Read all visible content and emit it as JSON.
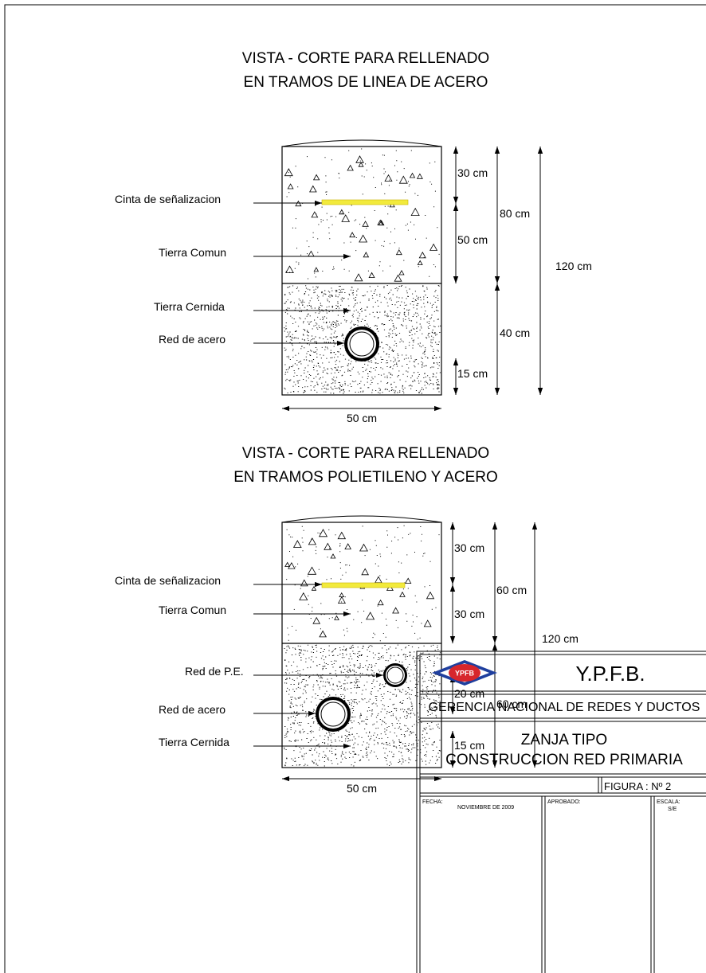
{
  "view1": {
    "title_line1": "VISTA - CORTE PARA RELLENADO",
    "title_line2": "EN TRAMOS DE LINEA DE ACERO",
    "labels": {
      "cinta": "Cinta de señalizacion",
      "tierra_comun": "Tierra Comun",
      "tierra_cernida": "Tierra Cernida",
      "red_acero": "Red de acero"
    },
    "dims": {
      "d30": "30 cm",
      "d50": "50 cm",
      "d80": "80 cm",
      "d120": "120 cm",
      "d40": "40 cm",
      "d15": "15 cm",
      "width": "50 cm"
    }
  },
  "view2": {
    "title_line1": "VISTA - CORTE PARA RELLENADO",
    "title_line2": "EN TRAMOS POLIETILENO Y ACERO",
    "labels": {
      "cinta": "Cinta de señalizacion",
      "tierra_comun": "Tierra Comun",
      "red_pe": "Red de P.E.",
      "red_acero": "Red de acero",
      "tierra_cernida": "Tierra Cernida"
    },
    "dims": {
      "d30a": "30 cm",
      "d30b": "30 cm",
      "d60a": "60 cm",
      "d120": "120 cm",
      "d20": "20 cm",
      "d60b": "60 cm",
      "d15": "15 cm",
      "width": "50 cm"
    }
  },
  "title_block": {
    "company": "Y.P.F.B.",
    "logo_text": "YPFB",
    "department": "GERENCIA NACIONAL DE REDES Y DUCTOS",
    "drawing_title_line1": "ZANJA TIPO",
    "drawing_title_line2": "CONSTRUCCION RED PRIMARIA",
    "figure": "FIGURA : Nº 2",
    "fecha_label": "FECHA:",
    "fecha_value": "NOVIEMBRE DE 2009",
    "aprobado_label": "APROBADO:",
    "escala_label": "ESCALA:",
    "escala_value": "S/E"
  },
  "colors": {
    "tape": "#f2ea3c",
    "logo_red": "#d7262c",
    "logo_blue": "#1f3f9e"
  }
}
